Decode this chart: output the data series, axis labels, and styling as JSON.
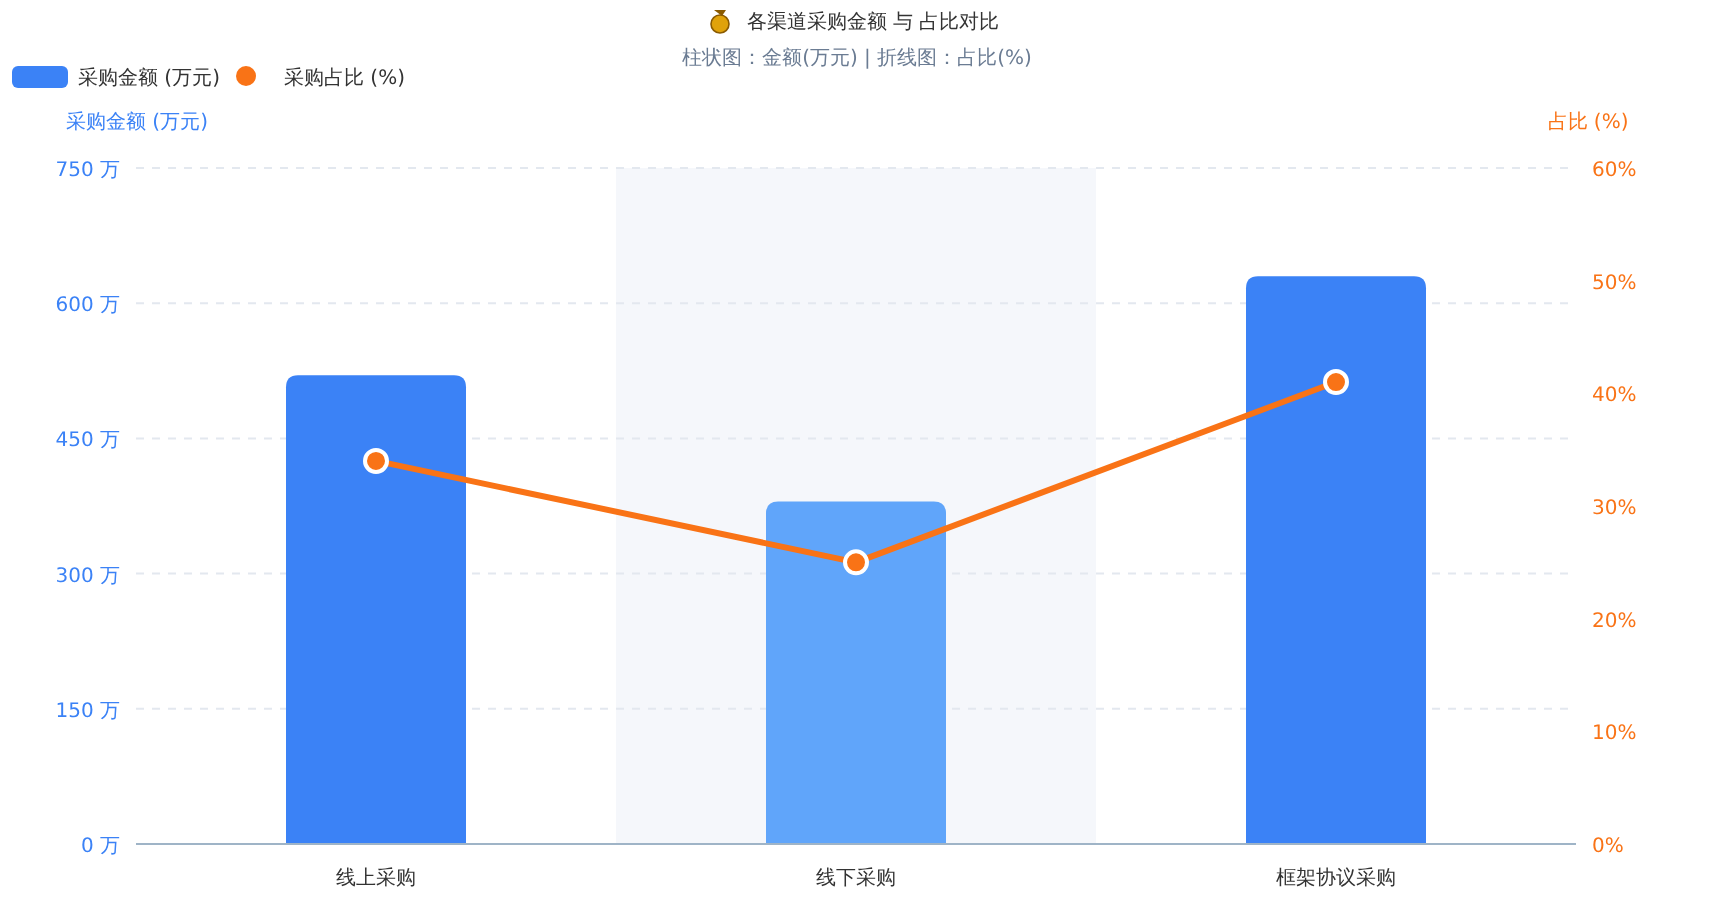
{
  "chart_data": {
    "type": "bar",
    "title": "各渠道采购金额 与 占比对比",
    "subtitle": "柱状图：金额(万元)  |  折线图：占比(%)",
    "ylabel": "采购金额 (万元)",
    "y2label": "占比 (%)",
    "categories": [
      "线上采购",
      "线下采购",
      "框架协议采购"
    ],
    "series": [
      {
        "name": "采购金额 (万元)",
        "color": "#3b82f6",
        "colors": [
          "#3b82f6",
          "#60a5fa",
          "#3b82f6"
        ],
        "values": [
          520,
          380,
          630
        ]
      },
      {
        "name": "采购占比 (%)",
        "type": "line",
        "axis": "y2",
        "color": "#f97316",
        "values": [
          34,
          25,
          41
        ],
        "marker": "circle"
      }
    ],
    "ylim": [
      0,
      750
    ],
    "yticks": [
      {
        "value": 0,
        "label": "0 万"
      },
      {
        "value": 150,
        "label": "150 万"
      },
      {
        "value": 300,
        "label": "300 万"
      },
      {
        "value": 450,
        "label": "450 万"
      },
      {
        "value": 600,
        "label": "600 万"
      },
      {
        "value": 750,
        "label": "750 万"
      }
    ],
    "y2lim": [
      0,
      60
    ],
    "y2ticks": [
      {
        "value": 0,
        "label": "0%"
      },
      {
        "value": 10,
        "label": "10%"
      },
      {
        "value": 20,
        "label": "20%"
      },
      {
        "value": 30,
        "label": "30%"
      },
      {
        "value": 40,
        "label": "40%"
      },
      {
        "value": 50,
        "label": "50%"
      },
      {
        "value": 60,
        "label": "60%"
      }
    ],
    "bands": [
      {
        "axis": "x",
        "from": "线下采购",
        "to": "线下采购",
        "color": "#f5f7fb"
      }
    ],
    "grid": "y",
    "legend": "top left"
  }
}
